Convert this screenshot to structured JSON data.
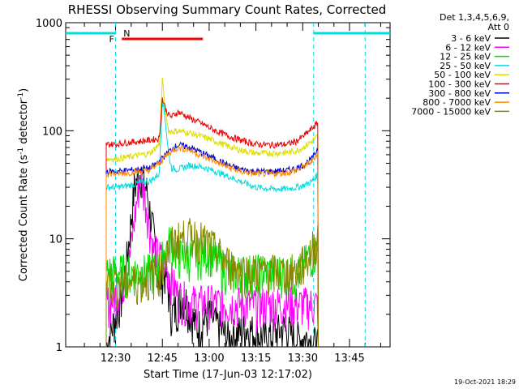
{
  "chart_data": {
    "type": "line",
    "title": "RHESSI Observing Summary Count Rates, Corrected",
    "xlabel": "Start Time (17-Jun-03 12:17:02)",
    "ylabel_main": "Corrected Count Rate (s",
    "ylabel_sup": "-1",
    "ylabel_tail": " detector",
    "ylabel_end": ")",
    "yscale": "log",
    "ylim": [
      1,
      1000
    ],
    "y_ticks": [
      {
        "value": 1,
        "label": "1"
      },
      {
        "value": 10,
        "label": "10"
      },
      {
        "value": 100,
        "label": "100"
      },
      {
        "value": 1000,
        "label": "1000"
      }
    ],
    "xlim_min": [
      14,
      118
    ],
    "x_ticks": [
      {
        "value": 30,
        "label": "12:30"
      },
      {
        "value": 45,
        "label": "12:45"
      },
      {
        "value": 60,
        "label": "13:00"
      },
      {
        "value": 75,
        "label": "13:15"
      },
      {
        "value": 90,
        "label": "13:30"
      },
      {
        "value": 105,
        "label": "13:45"
      }
    ],
    "legend_header": [
      "Det 1,3,4,5,6,9,",
      "Att 0"
    ],
    "legend_position": "right",
    "series": [
      {
        "name": "3 - 6 keV",
        "color": "#000000",
        "x": [
          27,
          32,
          34,
          36,
          38,
          40,
          42,
          44,
          46,
          48,
          52,
          56,
          60,
          66,
          72,
          78,
          84,
          88,
          92,
          95
        ],
        "y": [
          1,
          3,
          8,
          30,
          42,
          28,
          12,
          4,
          5,
          2,
          3,
          1.5,
          2,
          1.2,
          1.5,
          1.2,
          1.5,
          1.2,
          1.2,
          1
        ]
      },
      {
        "name": "6 - 12 keV",
        "color": "#ff00ff",
        "x": [
          27,
          30,
          34,
          36,
          38,
          40,
          42,
          46,
          50,
          54,
          60,
          70,
          80,
          90,
          95
        ],
        "y": [
          2.5,
          3,
          5,
          15,
          40,
          20,
          8,
          6,
          3,
          2.6,
          2.6,
          2.5,
          2.5,
          2.5,
          2.5
        ]
      },
      {
        "name": "12 - 25 keV",
        "color": "#00e000",
        "x": [
          27,
          30,
          34,
          38,
          41,
          44,
          46,
          48,
          50,
          55,
          60,
          66,
          72,
          78,
          84,
          88,
          92,
          95
        ],
        "y": [
          5,
          5,
          5,
          5,
          5,
          5.5,
          8,
          10,
          7,
          7,
          8,
          5,
          5,
          5,
          5,
          4.5,
          7,
          8
        ]
      },
      {
        "name": "25 - 50 keV",
        "color": "#00dddd",
        "x": [
          27,
          30,
          34,
          38,
          41,
          44,
          45,
          46,
          47,
          48,
          50,
          54,
          58,
          62,
          66,
          70,
          75,
          80,
          85,
          88,
          90,
          93,
          95
        ],
        "y": [
          30,
          30,
          31,
          33,
          34,
          40,
          200,
          120,
          60,
          45,
          44,
          48,
          46,
          42,
          38,
          34,
          30,
          29,
          29,
          30,
          31,
          34,
          40
        ]
      },
      {
        "name": "50 - 100 keV",
        "color": "#dddd00",
        "x": [
          27,
          30,
          34,
          38,
          41,
          44,
          45,
          46,
          47,
          48,
          50,
          54,
          58,
          62,
          66,
          70,
          75,
          80,
          85,
          88,
          90,
          93,
          95
        ],
        "y": [
          55,
          55,
          57,
          60,
          62,
          75,
          300,
          150,
          100,
          98,
          100,
          95,
          88,
          80,
          72,
          66,
          62,
          62,
          63,
          65,
          70,
          80,
          90
        ]
      },
      {
        "name": "100 - 300 keV",
        "color": "#ee0000",
        "x": [
          27,
          30,
          34,
          38,
          41,
          44,
          45,
          46,
          47,
          48,
          50,
          54,
          58,
          62,
          66,
          70,
          75,
          80,
          85,
          88,
          90,
          93,
          95
        ],
        "y": [
          75,
          75,
          78,
          80,
          82,
          85,
          200,
          160,
          140,
          135,
          150,
          130,
          115,
          100,
          90,
          82,
          75,
          74,
          75,
          80,
          88,
          105,
          120
        ]
      },
      {
        "name": "300 - 800 keV",
        "color": "#0000cc",
        "x": [
          27,
          30,
          34,
          38,
          41,
          44,
          46,
          48,
          50,
          54,
          58,
          62,
          66,
          70,
          75,
          80,
          85,
          88,
          90,
          93,
          95
        ],
        "y": [
          42,
          42,
          43,
          44,
          45,
          52,
          60,
          68,
          74,
          70,
          62,
          55,
          48,
          44,
          42,
          42,
          43,
          45,
          48,
          55,
          70
        ]
      },
      {
        "name": "800 - 7000 keV",
        "color": "#ff8800",
        "x": [
          27,
          30,
          34,
          38,
          41,
          44,
          46,
          48,
          50,
          54,
          58,
          62,
          66,
          70,
          75,
          80,
          85,
          88,
          90,
          93,
          95
        ],
        "y": [
          40,
          40,
          41,
          42,
          43,
          50,
          58,
          65,
          70,
          66,
          58,
          52,
          46,
          42,
          40,
          40,
          41,
          43,
          46,
          52,
          65
        ]
      },
      {
        "name": "7000 - 15000 keV",
        "color": "#888800",
        "x": [
          27,
          30,
          34,
          38,
          41,
          44,
          46,
          48,
          50,
          55,
          60,
          66,
          72,
          78,
          84,
          88,
          92,
          95
        ],
        "y": [
          4,
          4,
          4,
          4.2,
          4.5,
          5,
          7,
          9,
          10,
          11,
          9,
          6,
          5,
          5,
          5,
          5,
          7,
          11
        ]
      }
    ],
    "attenuator_bars": {
      "color": "#00dddd",
      "segments": [
        [
          14,
          30
        ],
        [
          93.5,
          118
        ]
      ]
    },
    "dashed_lines": {
      "color": "#00dddd",
      "x": [
        30,
        93.5,
        110
      ]
    },
    "flag_labels": [
      {
        "text": "F",
        "color": "#ff0000",
        "x": 30
      },
      {
        "text": "N",
        "color": "#00dddd",
        "x": 31.5
      }
    ],
    "flare_bar": {
      "color": "#ff0000",
      "x": [
        32,
        58
      ]
    },
    "timestamp": "19-Oct-2021 18:29"
  }
}
